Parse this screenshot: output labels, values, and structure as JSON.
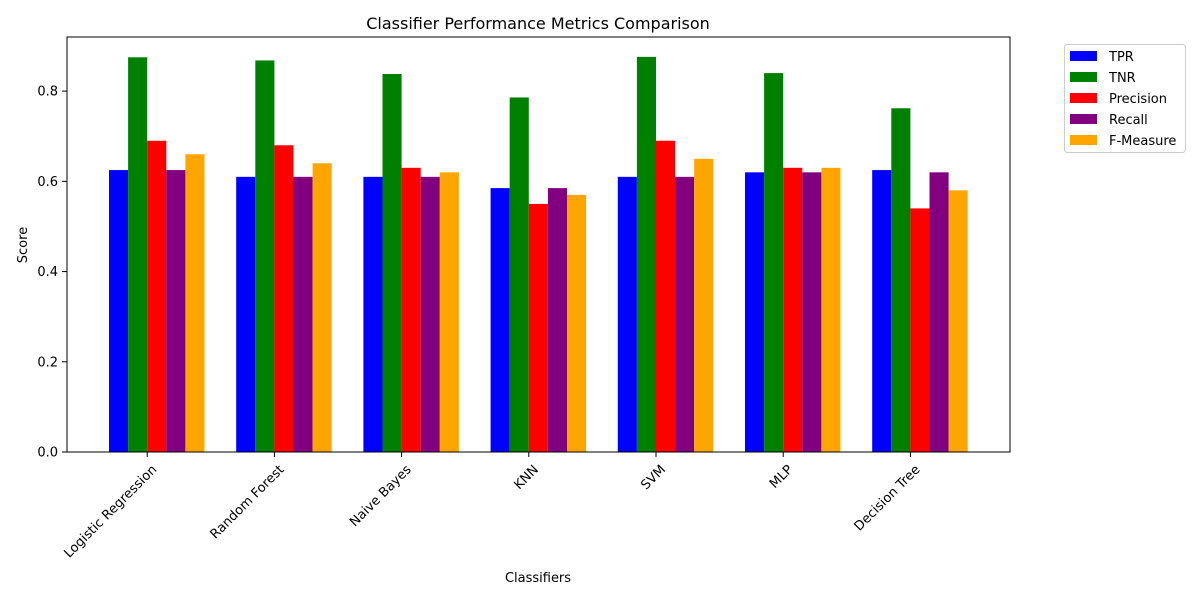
{
  "chart_data": {
    "type": "bar",
    "title": "Classifier Performance Metrics Comparison",
    "xlabel": "Classifiers",
    "ylabel": "Score",
    "ylim": [
      0,
      0.92
    ],
    "yticks": [
      0.0,
      0.2,
      0.4,
      0.6,
      0.8
    ],
    "ytick_labels": [
      "0.0",
      "0.2",
      "0.4",
      "0.6",
      "0.8"
    ],
    "categories": [
      "Logistic Regression",
      "Random Forest",
      "Naive Bayes",
      "KNN",
      "SVM",
      "MLP",
      "Decision Tree"
    ],
    "series": [
      {
        "name": "TPR",
        "color": "#0000ff",
        "values": [
          0.625,
          0.61,
          0.61,
          0.585,
          0.61,
          0.62,
          0.625
        ]
      },
      {
        "name": "TNR",
        "color": "#008000",
        "values": [
          0.875,
          0.868,
          0.838,
          0.786,
          0.876,
          0.84,
          0.762
        ]
      },
      {
        "name": "Precision",
        "color": "#ff0000",
        "values": [
          0.69,
          0.68,
          0.63,
          0.55,
          0.69,
          0.63,
          0.54
        ]
      },
      {
        "name": "Recall",
        "color": "#800080",
        "values": [
          0.625,
          0.61,
          0.61,
          0.585,
          0.61,
          0.62,
          0.62
        ]
      },
      {
        "name": "F-Measure",
        "color": "#ffa500",
        "values": [
          0.66,
          0.64,
          0.62,
          0.57,
          0.65,
          0.63,
          0.58
        ]
      }
    ],
    "grid": false,
    "legend_position": "outside-top-right"
  }
}
